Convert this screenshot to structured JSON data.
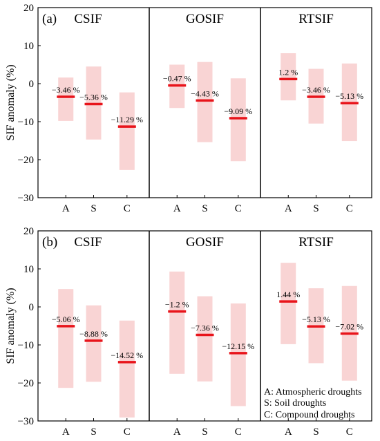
{
  "colors": {
    "range": "#f9d4d4",
    "mean": "#e8141b",
    "axis": "#000000"
  },
  "ylabel": "SIF anomaly (%)",
  "legend": [
    "A: Atmospheric droughts",
    "S: Soil droughts",
    "C: Compound droughts"
  ],
  "chart_data": [
    {
      "type": "bar",
      "panel": "(a)",
      "ylim": [
        -30,
        20
      ],
      "yticks": [
        -30,
        -20,
        -10,
        0,
        10,
        20
      ],
      "categories": [
        "A",
        "S",
        "C"
      ],
      "subplots": [
        {
          "title": "CSIF",
          "ranges": [
            [
              -9.8,
              1.6
            ],
            [
              -14.7,
              4.5
            ],
            [
              -22.7,
              -2.3
            ]
          ],
          "means": [
            -3.46,
            -5.36,
            -11.29
          ],
          "labels": [
            "−3.46 %",
            "−5.36 %",
            "−11.29 %"
          ]
        },
        {
          "title": "GOSIF",
          "ranges": [
            [
              -6.4,
              5.0
            ],
            [
              -15.4,
              5.7
            ],
            [
              -20.4,
              1.4
            ]
          ],
          "means": [
            -0.47,
            -4.43,
            -9.09
          ],
          "labels": [
            "−0.47 %",
            "−4.43 %",
            "−9.09 %"
          ]
        },
        {
          "title": "RTSIF",
          "ranges": [
            [
              -4.4,
              8.0
            ],
            [
              -10.5,
              3.9
            ],
            [
              -15.1,
              5.3
            ]
          ],
          "means": [
            1.2,
            -3.46,
            -5.13
          ],
          "labels": [
            "1.2 %",
            "−3.46 %",
            "−5.13 %"
          ]
        }
      ]
    },
    {
      "type": "bar",
      "panel": "(b)",
      "ylim": [
        -30,
        20
      ],
      "yticks": [
        -30,
        -20,
        -10,
        0,
        10,
        20
      ],
      "categories": [
        "A",
        "S",
        "C"
      ],
      "subplots": [
        {
          "title": "CSIF",
          "ranges": [
            [
              -21.3,
              4.7
            ],
            [
              -19.7,
              0.4
            ],
            [
              -29.1,
              -3.6
            ]
          ],
          "means": [
            -5.06,
            -8.88,
            -14.52
          ],
          "labels": [
            "−5.06 %",
            "−8.88 %",
            "−14.52 %"
          ]
        },
        {
          "title": "GOSIF",
          "ranges": [
            [
              -17.6,
              9.3
            ],
            [
              -19.6,
              2.8
            ],
            [
              -26.1,
              0.9
            ]
          ],
          "means": [
            -1.2,
            -7.36,
            -12.15
          ],
          "labels": [
            "−1.2 %",
            "−7.36 %",
            "−12.15 %"
          ]
        },
        {
          "title": "RTSIF",
          "ranges": [
            [
              -9.8,
              11.6
            ],
            [
              -14.8,
              4.9
            ],
            [
              -19.4,
              5.5
            ]
          ],
          "means": [
            1.44,
            -5.13,
            -7.02
          ],
          "labels": [
            "1.44 %",
            "−5.13 %",
            "−7.02 %"
          ]
        }
      ]
    }
  ]
}
